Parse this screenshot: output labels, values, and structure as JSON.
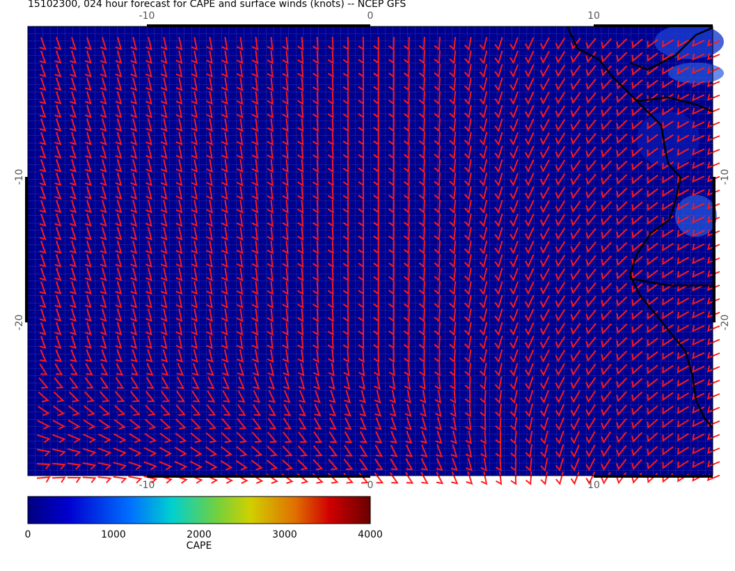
{
  "title": "15102300, 024 hour forecast for CAPE and surface winds (knots) -- NCEP GFS",
  "map": {
    "x_ticks": [
      -10,
      0,
      10
    ],
    "y_ticks": [
      -10,
      -20
    ]
  },
  "colorbar": {
    "label": "CAPE",
    "ticks": [
      0,
      1000,
      2000,
      3000,
      4000
    ]
  }
}
